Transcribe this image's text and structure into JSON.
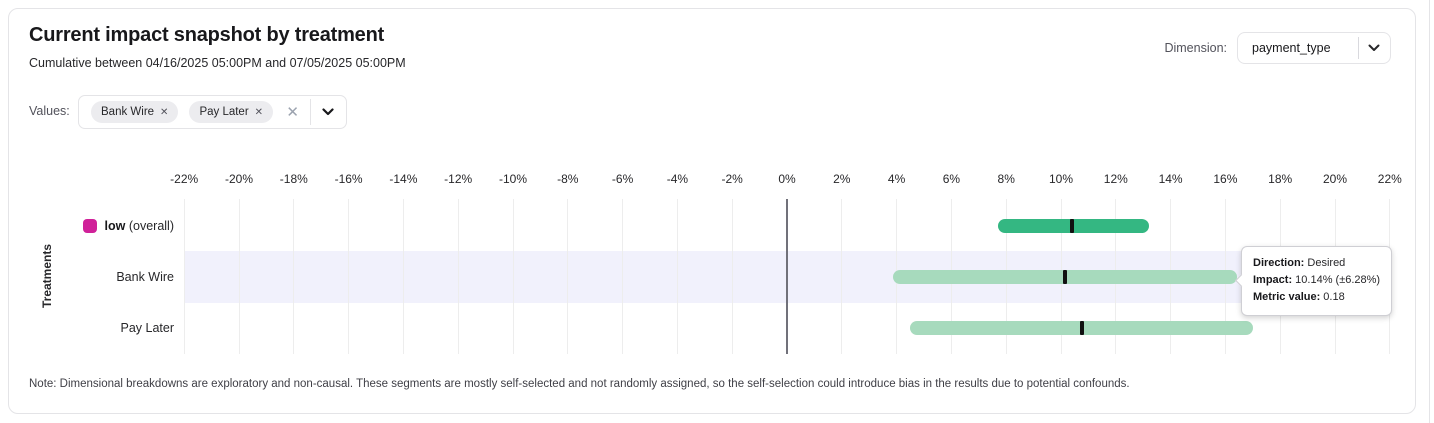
{
  "header": {
    "title": "Current impact snapshot by treatment",
    "subtitle": "Cumulative between 04/16/2025 05:00PM and 07/05/2025 05:00PM",
    "dimension_label": "Dimension:",
    "dimension_value": "payment_type"
  },
  "filters": {
    "label": "Values:",
    "chips": [
      {
        "label": "Bank Wire",
        "remove_icon": "✕"
      },
      {
        "label": "Pay Later",
        "remove_icon": "✕"
      }
    ],
    "clear_icon": "✕"
  },
  "chart_data": {
    "type": "interval-bar",
    "ylabel": "Treatments",
    "x_axis": {
      "min": -22,
      "max": 22,
      "step": 2,
      "unit": "%",
      "tick_labels": [
        "-22%",
        "-20%",
        "-18%",
        "-16%",
        "-14%",
        "-12%",
        "-10%",
        "-8%",
        "-6%",
        "-4%",
        "-2%",
        "0%",
        "2%",
        "4%",
        "6%",
        "8%",
        "10%",
        "12%",
        "14%",
        "16%",
        "18%",
        "20%",
        "22%"
      ]
    },
    "grid": true,
    "highlight_color": "#f1f1fc",
    "midpoint_tick_color": "#111111",
    "rows": [
      {
        "label": "low (overall)",
        "label_bold": "low",
        "label_rest": " (overall)",
        "swatch_color": "#d02199",
        "bar_color": "#34b782",
        "low": 7.7,
        "mid": 10.4,
        "high": 13.2,
        "highlighted": false
      },
      {
        "label": "Bank Wire",
        "bar_color": "#a7dabd",
        "low": 3.86,
        "mid": 10.14,
        "high": 16.42,
        "highlighted": true
      },
      {
        "label": "Pay Later",
        "bar_color": "#a7dabd",
        "low": 4.5,
        "mid": 10.75,
        "high": 17.0,
        "highlighted": false
      }
    ]
  },
  "tooltip": {
    "lines": [
      {
        "label": "Direction:",
        "value": " Desired"
      },
      {
        "label": "Impact:",
        "value": " 10.14% (±6.28%)"
      },
      {
        "label": "Metric value:",
        "value": " 0.18"
      }
    ]
  },
  "note": "Note: Dimensional breakdowns are exploratory and non-causal. These segments are mostly self-selected and not randomly assigned, so the self-selection could introduce bias in the results due to potential confounds."
}
